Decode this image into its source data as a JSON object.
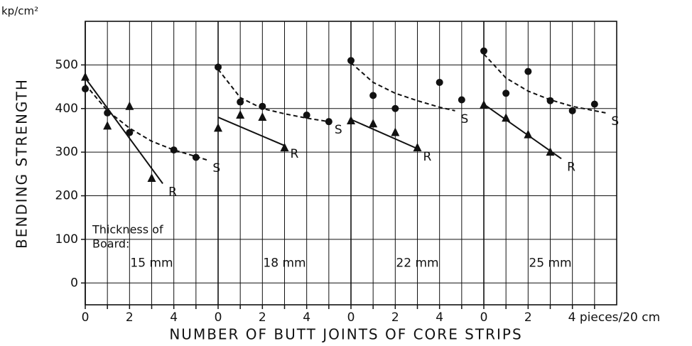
{
  "chart_data": {
    "type": "scatter",
    "ylabel": "BENDING STRENGTH",
    "yunit": "kp/cm²",
    "xlabel": "NUMBER OF BUTT JOINTS OF CORE STRIPS",
    "note": [
      "Thickness of",
      "Board:"
    ],
    "ylim": [
      -50,
      600
    ],
    "yticks": [
      0,
      100,
      200,
      300,
      400,
      500
    ],
    "grid": true,
    "panels": [
      {
        "label": "15 mm",
        "xlim": [
          0,
          6
        ],
        "xticks": [
          0,
          2,
          4
        ],
        "minor_xticks": [
          1,
          3,
          5
        ],
        "series": [
          {
            "marker": "circle",
            "x": [
              0,
              1,
              2,
              4,
              5
            ],
            "values": [
              445,
              390,
              345,
              305,
              288
            ]
          },
          {
            "marker": "triangle",
            "x": [
              0,
              1,
              2,
              3
            ],
            "values": [
              472,
              360,
              405,
              240
            ]
          }
        ],
        "fits": [
          {
            "name": "S",
            "dash": true,
            "x": [
              0,
              1,
              2,
              3,
              4,
              5,
              5.5
            ],
            "values": [
              455,
              395,
              355,
              325,
              305,
              290,
              282
            ]
          },
          {
            "name": "R",
            "dash": false,
            "x": [
              0,
              3.5
            ],
            "values": [
              470,
              228
            ]
          }
        ]
      },
      {
        "label": "18 mm",
        "xlim": [
          0,
          6
        ],
        "xticks": [
          0,
          2,
          4
        ],
        "minor_xticks": [
          1,
          3,
          5
        ],
        "series": [
          {
            "marker": "circle",
            "x": [
              0,
              1,
              2,
              4,
              5
            ],
            "values": [
              495,
              415,
              405,
              385,
              370
            ]
          },
          {
            "marker": "triangle",
            "x": [
              0,
              1,
              2,
              3
            ],
            "values": [
              355,
              385,
              380,
              310
            ]
          }
        ],
        "fits": [
          {
            "name": "S",
            "dash": true,
            "x": [
              0,
              1,
              2,
              3,
              4,
              5
            ],
            "values": [
              490,
              425,
              400,
              388,
              378,
              370
            ]
          },
          {
            "name": "R",
            "dash": false,
            "x": [
              0,
              3
            ],
            "values": [
              380,
              315
            ]
          }
        ]
      },
      {
        "label": "22 mm",
        "xlim": [
          0,
          6
        ],
        "xticks": [
          0,
          2,
          4
        ],
        "minor_xticks": [
          1,
          3,
          5
        ],
        "series": [
          {
            "marker": "circle",
            "x": [
              0,
              1,
              2,
              4,
              5
            ],
            "values": [
              510,
              430,
              400,
              460,
              420
            ]
          },
          {
            "marker": "triangle",
            "x": [
              0,
              1,
              2,
              3
            ],
            "values": [
              372,
              365,
              345,
              310
            ]
          }
        ],
        "fits": [
          {
            "name": "S",
            "dash": true,
            "x": [
              0,
              1,
              2,
              3,
              4,
              4.7
            ],
            "values": [
              505,
              460,
              435,
              418,
              403,
              395
            ]
          },
          {
            "name": "R",
            "dash": false,
            "x": [
              0,
              3
            ],
            "values": [
              375,
              308
            ]
          }
        ]
      },
      {
        "label": "25 mm",
        "xlim": [
          0,
          6
        ],
        "xticks": [
          0,
          2,
          {
            "value": 4,
            "label": "4 pieces/20 cm"
          }
        ],
        "minor_xticks": [
          1,
          3,
          5
        ],
        "series": [
          {
            "marker": "circle",
            "x": [
              0,
              1,
              2,
              3,
              4,
              5
            ],
            "values": [
              532,
              435,
              485,
              418,
              395,
              410
            ]
          },
          {
            "marker": "triangle",
            "x": [
              0,
              1,
              2,
              3
            ],
            "values": [
              408,
              378,
              340,
              300
            ]
          }
        ],
        "fits": [
          {
            "name": "S",
            "dash": true,
            "x": [
              0,
              1,
              2,
              3,
              4,
              5,
              5.5
            ],
            "values": [
              525,
              470,
              440,
              420,
              405,
              395,
              390
            ]
          },
          {
            "name": "R",
            "dash": false,
            "x": [
              0,
              3.5
            ],
            "values": [
              410,
              285
            ]
          }
        ]
      }
    ]
  }
}
